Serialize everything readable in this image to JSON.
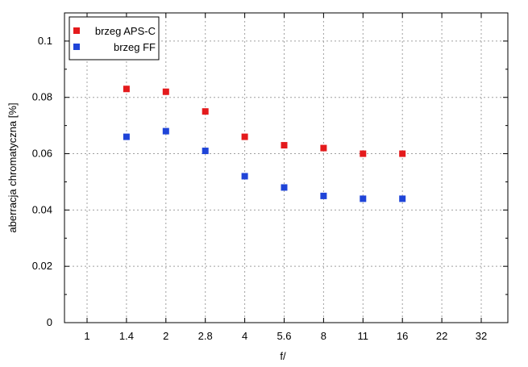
{
  "chart_data": {
    "type": "scatter",
    "title": "",
    "xlabel": "f/",
    "ylabel": "aberracja chromatyczna [%]",
    "x_categories": [
      "1",
      "1.4",
      "2",
      "2.8",
      "4",
      "5.6",
      "8",
      "11",
      "16",
      "22",
      "32"
    ],
    "ylim": [
      0,
      0.11
    ],
    "y_ticks": [
      {
        "value": 0,
        "label": "0"
      },
      {
        "value": 0.02,
        "label": "0.02"
      },
      {
        "value": 0.04,
        "label": "0.04"
      },
      {
        "value": 0.06,
        "label": "0.06"
      },
      {
        "value": 0.08,
        "label": "0.08"
      },
      {
        "value": 0.1,
        "label": "0.1"
      }
    ],
    "grid": true,
    "legend_position": "top-left",
    "series": [
      {
        "name": "brzeg APS-C",
        "color": "#e41a1c",
        "points": [
          {
            "x": "1.4",
            "y": 0.083
          },
          {
            "x": "2",
            "y": 0.082
          },
          {
            "x": "2.8",
            "y": 0.075
          },
          {
            "x": "4",
            "y": 0.066
          },
          {
            "x": "5.6",
            "y": 0.063
          },
          {
            "x": "8",
            "y": 0.062
          },
          {
            "x": "11",
            "y": 0.06
          },
          {
            "x": "16",
            "y": 0.06
          }
        ]
      },
      {
        "name": "brzeg FF",
        "color": "#1f44d8",
        "points": [
          {
            "x": "1.4",
            "y": 0.066
          },
          {
            "x": "2",
            "y": 0.068
          },
          {
            "x": "2.8",
            "y": 0.061
          },
          {
            "x": "4",
            "y": 0.052
          },
          {
            "x": "5.6",
            "y": 0.048
          },
          {
            "x": "8",
            "y": 0.045
          },
          {
            "x": "11",
            "y": 0.044
          },
          {
            "x": "16",
            "y": 0.044
          }
        ]
      }
    ]
  }
}
